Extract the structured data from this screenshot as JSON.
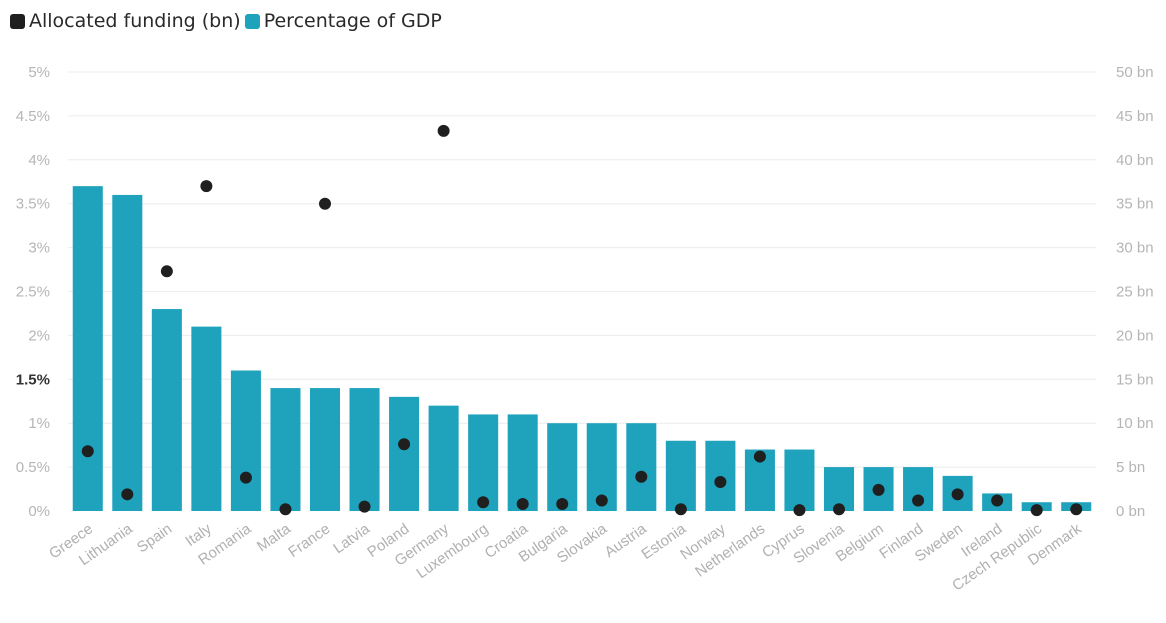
{
  "chart_data": {
    "type": "bar",
    "categories": [
      "Greece",
      "Lithuania",
      "Spain",
      "Italy",
      "Romania",
      "Malta",
      "France",
      "Latvia",
      "Poland",
      "Germany",
      "Luxembourg",
      "Croatia",
      "Bulgaria",
      "Slovakia",
      "Austria",
      "Estonia",
      "Norway",
      "Netherlands",
      "Cyprus",
      "Slovenia",
      "Belgium",
      "Finland",
      "Sweden",
      "Ireland",
      "Czech Republic",
      "Denmark"
    ],
    "series": [
      {
        "name": "Allocated funding (bn)",
        "kind": "dot",
        "axis": "right",
        "color": "#1f1f1f",
        "values": [
          6.8,
          1.9,
          27.3,
          37.0,
          3.8,
          0.2,
          35.0,
          0.5,
          7.6,
          43.3,
          1.0,
          0.8,
          0.8,
          1.2,
          3.9,
          0.2,
          3.3,
          6.2,
          0.1,
          0.2,
          2.4,
          1.2,
          1.9,
          1.2,
          0.1,
          0.2
        ]
      },
      {
        "name": "Percentage of GDP",
        "kind": "bar",
        "axis": "left",
        "color": "#1fa3bd",
        "values": [
          3.7,
          3.6,
          2.3,
          2.1,
          1.6,
          1.4,
          1.4,
          1.4,
          1.3,
          1.2,
          1.1,
          1.1,
          1.0,
          1.0,
          1.0,
          0.8,
          0.8,
          0.7,
          0.7,
          0.5,
          0.5,
          0.5,
          0.4,
          0.2,
          0.1,
          0.1
        ]
      }
    ],
    "y_left": {
      "ylim": [
        0,
        5
      ],
      "ticks": [
        "0%",
        "0.5%",
        "1%",
        "1.5%",
        "2%",
        "2.5%",
        "3%",
        "3.5%",
        "4%",
        "4.5%",
        "5%"
      ],
      "tick_values": [
        0,
        0.5,
        1,
        1.5,
        2,
        2.5,
        3,
        3.5,
        4,
        4.5,
        5
      ],
      "bold_tick": "1.5%"
    },
    "y_right": {
      "ylim": [
        0,
        50
      ],
      "ticks": [
        "0 bn",
        "5 bn",
        "10 bn",
        "15 bn",
        "20 bn",
        "25 bn",
        "30 bn",
        "35 bn",
        "40 bn",
        "45 bn",
        "50 bn"
      ],
      "tick_values": [
        0,
        5,
        10,
        15,
        20,
        25,
        30,
        35,
        40,
        45,
        50
      ]
    },
    "title": "",
    "grid": true,
    "legend_position": "top-left"
  }
}
